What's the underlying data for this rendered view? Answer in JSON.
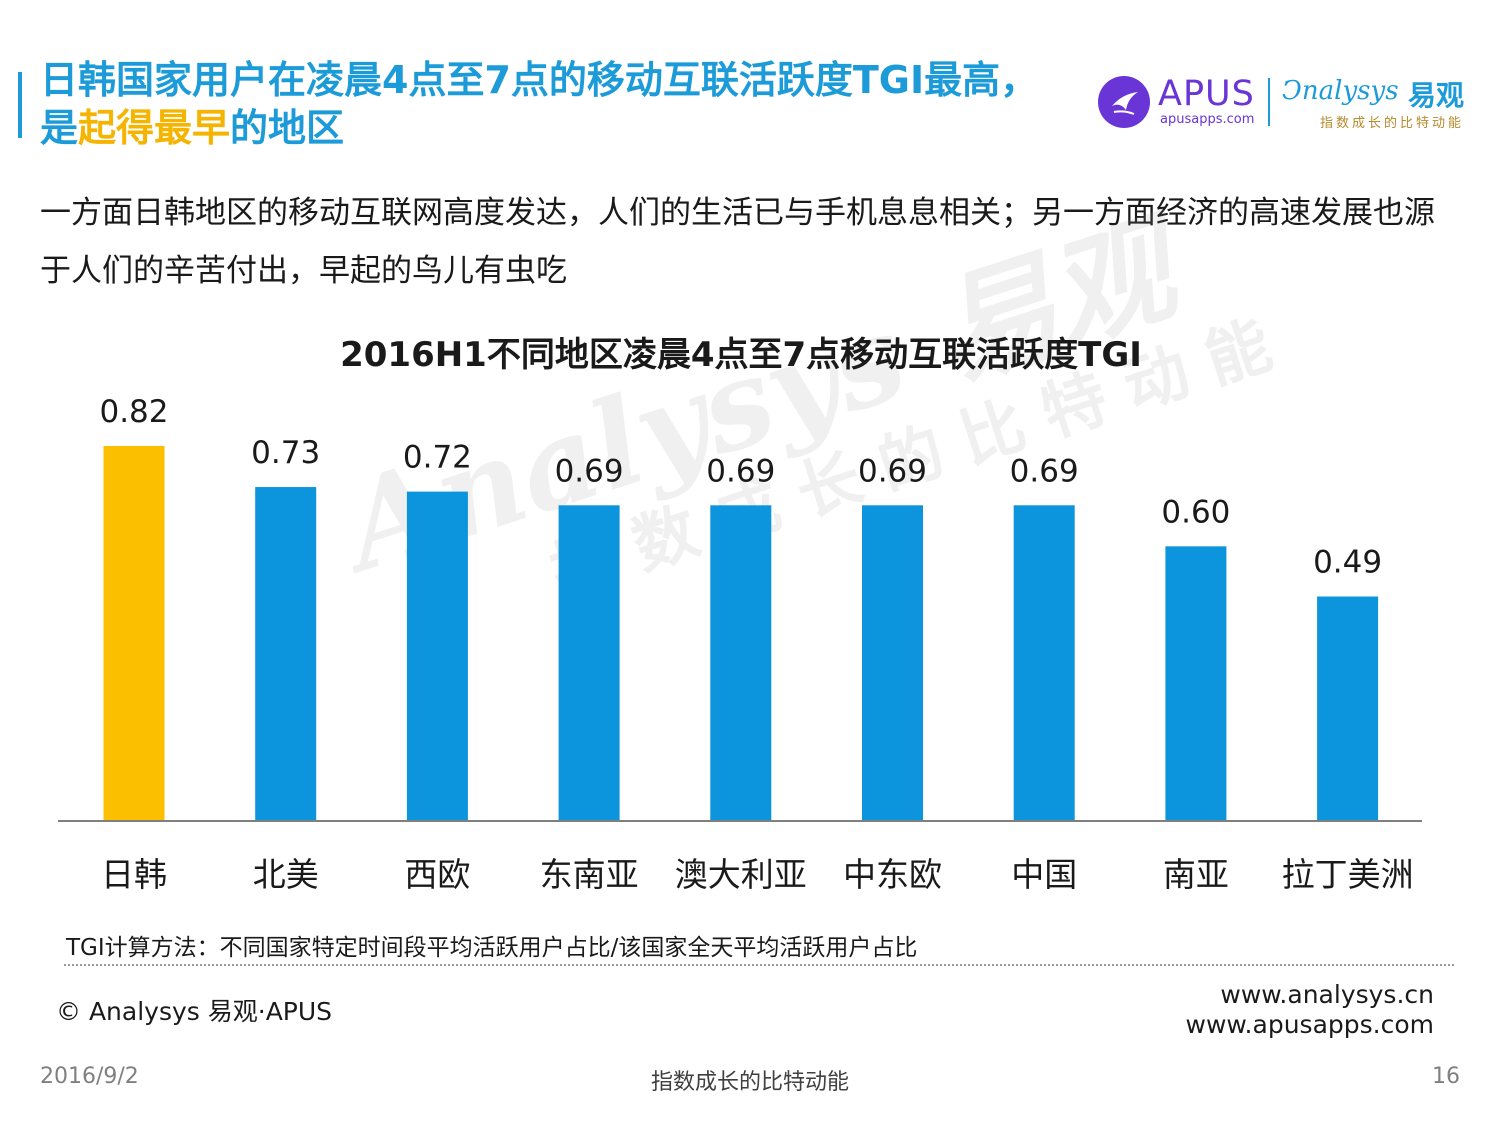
{
  "header": {
    "headline_part1": "日韩国家用户在凌晨4点至7点的移动互联活跃度TGI最高，是",
    "headline_highlight": "起得最早",
    "headline_part2": "的地区",
    "accent_color": "#1c9bd8",
    "highlight_color": "#f5b400"
  },
  "logo": {
    "apus_name": "APUS",
    "apus_url": "apusapps.com",
    "analysys_name": "nalysys",
    "analysys_cn": "易观",
    "analysys_slogan": "指数成长的比特动能"
  },
  "intro": "一方面日韩地区的移动互联网高度发达，人们的生活已与手机息息相关；另一方面经济的高速发展也源于人们的辛苦付出，早起的鸟儿有虫吃",
  "watermark": {
    "line1": "Analysys 易观",
    "line2": "指数成长的比特动能"
  },
  "chart_data": {
    "type": "bar",
    "title": "2016H1不同地区凌晨4点至7点移动互联活跃度TGI",
    "categories": [
      "日韩",
      "北美",
      "西欧",
      "东南亚",
      "澳大利亚",
      "中东欧",
      "中国",
      "南亚",
      "拉丁美洲"
    ],
    "values": [
      0.82,
      0.73,
      0.72,
      0.69,
      0.69,
      0.69,
      0.69,
      0.6,
      0.49
    ],
    "value_labels": [
      "0.82",
      "0.73",
      "0.72",
      "0.69",
      "0.69",
      "0.69",
      "0.69",
      "0.60",
      "0.49"
    ],
    "highlight_index": 0,
    "colors": {
      "bar": "#0c95dc",
      "highlight": "#fbbf00",
      "axis": "#7f7f7f"
    },
    "ylim": [
      0,
      0.82
    ],
    "xlabel": "",
    "ylabel": "",
    "grid": false,
    "legend": "none"
  },
  "footer": {
    "footnote": "TGI计算方法：不同国家特定时间段平均活跃用户占比/该国家全天平均活跃用户占比",
    "copyright": "© Analysys 易观·APUS",
    "url1": "www.analysys.cn",
    "url2": "www.apusapps.com",
    "date": "2016/9/2",
    "slogan": "指数成长的比特动能",
    "page_number": "16"
  }
}
